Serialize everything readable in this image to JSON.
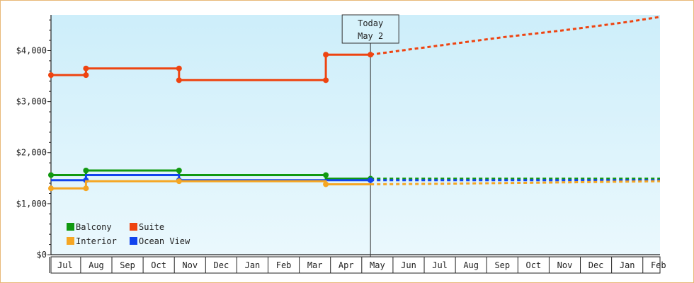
{
  "chart_data": {
    "type": "line",
    "title": "",
    "xlabel": "",
    "ylabel": "",
    "ylim": [
      0,
      4700
    ],
    "y_ticks": [
      {
        "value": 0,
        "label": "$0"
      },
      {
        "value": 1000,
        "label": "$1,000"
      },
      {
        "value": 2000,
        "label": "$2,000"
      },
      {
        "value": 3000,
        "label": "$3,000"
      },
      {
        "value": 4000,
        "label": "$4,000"
      }
    ],
    "x_months": [
      "Jul",
      "Aug",
      "Sep",
      "Oct",
      "Nov",
      "Dec",
      "Jan",
      "Feb",
      "Mar",
      "Apr",
      "May",
      "Jun",
      "Jul",
      "Aug",
      "Sep",
      "Oct",
      "Nov",
      "Dec",
      "Jan",
      "Feb"
    ],
    "x_range": [
      -0.45,
      19.05
    ],
    "today": {
      "line1": "Today",
      "line2": "May 2",
      "x": 9.78
    },
    "background": {
      "top": "#cdeefa",
      "bottom": "#eaf8fd"
    },
    "grid": false,
    "legend_position": "bottom-left",
    "series": [
      {
        "name": "Suite",
        "color": "#ee4411",
        "history": [
          [
            -0.45,
            3520
          ],
          [
            0.67,
            3520
          ],
          [
            0.67,
            3650
          ],
          [
            3.65,
            3650
          ],
          [
            3.65,
            3420
          ],
          [
            8.35,
            3420
          ],
          [
            8.35,
            3920
          ],
          [
            9.78,
            3920
          ]
        ],
        "markers": [
          [
            -0.45,
            3520
          ],
          [
            0.67,
            3520
          ],
          [
            0.67,
            3650
          ],
          [
            3.65,
            3650
          ],
          [
            3.65,
            3420
          ],
          [
            8.35,
            3420
          ],
          [
            8.35,
            3920
          ],
          [
            9.78,
            3920
          ]
        ],
        "forecast": [
          [
            9.78,
            3920
          ],
          [
            11,
            4020
          ],
          [
            12,
            4100
          ],
          [
            13,
            4180
          ],
          [
            14,
            4260
          ],
          [
            15,
            4330
          ],
          [
            16,
            4400
          ],
          [
            17,
            4480
          ],
          [
            18,
            4560
          ],
          [
            19.05,
            4660
          ]
        ]
      },
      {
        "name": "Balcony",
        "color": "#119911",
        "history": [
          [
            -0.45,
            1560
          ],
          [
            0.67,
            1560
          ],
          [
            0.67,
            1650
          ],
          [
            3.65,
            1650
          ],
          [
            3.65,
            1560
          ],
          [
            8.35,
            1560
          ],
          [
            8.35,
            1490
          ],
          [
            9.78,
            1490
          ]
        ],
        "markers": [
          [
            -0.45,
            1560
          ],
          [
            0.67,
            1650
          ],
          [
            3.65,
            1650
          ],
          [
            8.35,
            1560
          ],
          [
            9.78,
            1490
          ]
        ],
        "forecast": [
          [
            9.78,
            1490
          ],
          [
            19.05,
            1490
          ]
        ]
      },
      {
        "name": "Ocean View",
        "color": "#1144ee",
        "history": [
          [
            -0.45,
            1460
          ],
          [
            0.67,
            1460
          ],
          [
            0.67,
            1560
          ],
          [
            3.65,
            1560
          ],
          [
            3.65,
            1460
          ],
          [
            9.78,
            1460
          ]
        ],
        "markers": [
          [
            0.67,
            1460
          ],
          [
            3.65,
            1460
          ],
          [
            9.78,
            1460
          ]
        ],
        "forecast": [
          [
            9.78,
            1460
          ],
          [
            19.05,
            1460
          ]
        ]
      },
      {
        "name": "Interior",
        "color": "#f5a623",
        "history": [
          [
            -0.45,
            1300
          ],
          [
            0.67,
            1300
          ],
          [
            0.67,
            1440
          ],
          [
            8.35,
            1440
          ],
          [
            8.35,
            1380
          ],
          [
            9.78,
            1380
          ]
        ],
        "markers": [
          [
            -0.45,
            1300
          ],
          [
            0.67,
            1300
          ],
          [
            3.65,
            1440
          ],
          [
            8.35,
            1380
          ]
        ],
        "forecast": [
          [
            9.78,
            1380
          ],
          [
            12,
            1390
          ],
          [
            15,
            1410
          ],
          [
            19.05,
            1440
          ]
        ]
      }
    ],
    "legend": [
      {
        "name": "Balcony",
        "color": "#119911"
      },
      {
        "name": "Suite",
        "color": "#ee4411"
      },
      {
        "name": "Interior",
        "color": "#f5a623"
      },
      {
        "name": "Ocean View",
        "color": "#1144ee"
      }
    ]
  }
}
